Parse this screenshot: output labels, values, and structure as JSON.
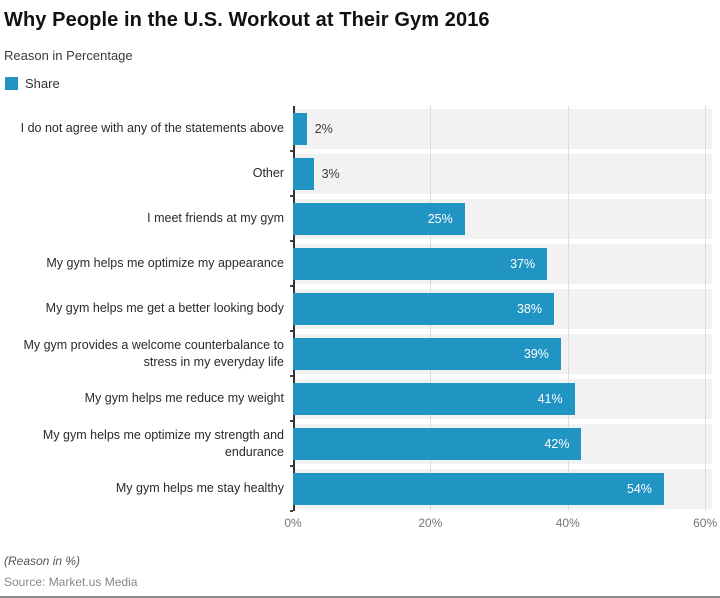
{
  "header": {
    "title": "Why People in the U.S. Workout at Their Gym 2016",
    "subtitle": "Reason in Percentage",
    "legend": {
      "label": "Share"
    }
  },
  "colors": {
    "bar": "#2095c3",
    "stripe": "#f2f2f2",
    "gridline": "#dcdcdc",
    "axis": "#333333"
  },
  "chart_data": {
    "type": "bar",
    "orientation": "horizontal",
    "title": "Why People in the U.S. Workout at Their Gym 2016",
    "series_name": "Share",
    "categories": [
      "I do not agree with any of the statements above",
      "Other",
      "I meet friends at my gym",
      "My gym helps me optimize my appearance",
      "My gym helps me get a better looking body",
      "My gym provides a welcome counterbalance to stress in my everyday life",
      "My gym helps me reduce my weight",
      "My gym helps me optimize my strength and endurance",
      "My gym helps me stay healthy"
    ],
    "values": [
      2,
      3,
      25,
      37,
      38,
      39,
      41,
      42,
      54
    ],
    "value_labels": [
      "2%",
      "3%",
      "25%",
      "37%",
      "38%",
      "39%",
      "41%",
      "42%",
      "54%"
    ],
    "xticks": [
      {
        "value": 0,
        "label": "0%"
      },
      {
        "value": 20,
        "label": "20%"
      },
      {
        "value": 40,
        "label": "40%"
      },
      {
        "value": 60,
        "label": "60%"
      }
    ],
    "xlim": [
      0,
      61
    ],
    "grid": true,
    "legend_position": "top-left",
    "inside_label_threshold": 10
  },
  "footer": {
    "note": "(Reason in %)",
    "source": "Source: Market.us Media"
  }
}
